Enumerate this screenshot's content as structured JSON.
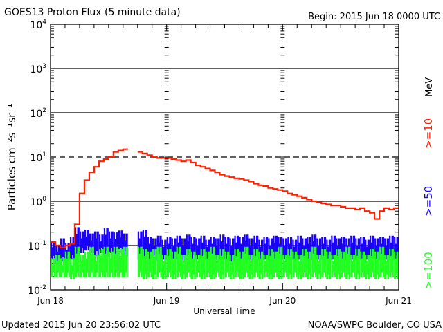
{
  "chart_data": {
    "type": "line",
    "title": "GOES13 Proton Flux (5 minute data)",
    "begin_label": "Begin: 2015 Jun 18 0000 UTC",
    "xlabel": "Universal Time",
    "ylabel": "Particles cm⁻²s⁻¹sr⁻¹",
    "yscale": "log",
    "ylim": [
      0.01,
      10000
    ],
    "y_ticks": [
      {
        "exp": "-2"
      },
      {
        "exp": "-1"
      },
      {
        "exp": "0"
      },
      {
        "exp": "1"
      },
      {
        "exp": "2"
      },
      {
        "exp": "3"
      },
      {
        "exp": "4"
      }
    ],
    "x_unit": "hours since 2015 Jun 18 0000 UTC",
    "xlim": [
      0,
      72
    ],
    "x_ticks": [
      {
        "hour": 0,
        "label": "Jun 18"
      },
      {
        "hour": 24,
        "label": "Jun 19"
      },
      {
        "hour": 48,
        "label": "Jun 20"
      },
      {
        "hour": 72,
        "label": "Jun 21"
      }
    ],
    "grid_solid": [
      3,
      2,
      0,
      -1
    ],
    "grid_dashed": [
      1
    ],
    "series": [
      {
        "name": ">=10",
        "unit_label": "MeV",
        "color": "#ff2000",
        "values": [
          0.12,
          0.1,
          0.09,
          0.1,
          0.11,
          0.3,
          1.5,
          3,
          4.5,
          6,
          8,
          9,
          10,
          13,
          14,
          15,
          null,
          null,
          13,
          12,
          11,
          10,
          9.5,
          9.5,
          9.5,
          9,
          8.5,
          8,
          8.5,
          7.5,
          6.5,
          6,
          5.5,
          5,
          4.5,
          4,
          3.7,
          3.5,
          3.3,
          3.2,
          3,
          2.8,
          2.5,
          2.3,
          2.2,
          2.0,
          1.9,
          1.8,
          1.7,
          1.5,
          1.4,
          1.3,
          1.2,
          1.1,
          1.0,
          0.95,
          0.9,
          0.85,
          0.8,
          0.8,
          0.75,
          0.7,
          0.7,
          0.65,
          0.7,
          0.6,
          0.55,
          0.4,
          0.6,
          0.7,
          0.65,
          0.7
        ]
      },
      {
        "name": ">=50",
        "color": "#1a00ff",
        "ranges": [
          [
            0.05,
            0.12
          ],
          [
            0.04,
            0.1
          ],
          [
            0.045,
            0.14
          ],
          [
            0.05,
            0.11
          ],
          [
            0.05,
            0.15
          ],
          [
            0.06,
            0.25
          ],
          [
            0.07,
            0.2
          ],
          [
            0.08,
            0.22
          ],
          [
            0.07,
            0.18
          ],
          [
            0.06,
            0.2
          ],
          [
            0.07,
            0.17
          ],
          [
            0.06,
            0.24
          ],
          [
            0.07,
            0.2
          ],
          [
            0.06,
            0.19
          ],
          [
            0.07,
            0.21
          ],
          [
            0.06,
            0.18
          ],
          null,
          null,
          [
            0.05,
            0.2
          ],
          [
            0.05,
            0.22
          ],
          [
            0.05,
            0.15
          ],
          [
            0.05,
            0.14
          ],
          [
            0.045,
            0.16
          ],
          [
            0.05,
            0.13
          ],
          [
            0.05,
            0.15
          ],
          [
            0.05,
            0.14
          ],
          [
            0.05,
            0.16
          ],
          [
            0.05,
            0.14
          ],
          [
            0.05,
            0.17
          ],
          [
            0.05,
            0.15
          ],
          [
            0.05,
            0.14
          ],
          [
            0.05,
            0.16
          ],
          [
            0.05,
            0.13
          ],
          [
            0.05,
            0.15
          ],
          [
            0.05,
            0.14
          ],
          [
            0.05,
            0.17
          ],
          [
            0.05,
            0.15
          ],
          [
            0.045,
            0.14
          ],
          [
            0.05,
            0.16
          ],
          [
            0.05,
            0.15
          ],
          [
            0.05,
            0.17
          ],
          [
            0.05,
            0.14
          ],
          [
            0.05,
            0.16
          ],
          [
            0.05,
            0.13
          ],
          [
            0.05,
            0.15
          ],
          [
            0.05,
            0.14
          ],
          [
            0.05,
            0.16
          ],
          [
            0.05,
            0.15
          ],
          [
            0.05,
            0.14
          ],
          [
            0.05,
            0.15
          ],
          [
            0.05,
            0.13
          ],
          [
            0.05,
            0.16
          ],
          [
            0.05,
            0.14
          ],
          [
            0.05,
            0.15
          ],
          [
            0.05,
            0.17
          ],
          [
            0.05,
            0.14
          ],
          [
            0.05,
            0.15
          ],
          [
            0.05,
            0.13
          ],
          [
            0.05,
            0.16
          ],
          [
            0.05,
            0.14
          ],
          [
            0.05,
            0.15
          ],
          [
            0.05,
            0.14
          ],
          [
            0.05,
            0.16
          ],
          [
            0.05,
            0.14
          ],
          [
            0.05,
            0.15
          ],
          [
            0.05,
            0.13
          ],
          [
            0.05,
            0.16
          ],
          [
            0.05,
            0.14
          ],
          [
            0.05,
            0.15
          ],
          [
            0.05,
            0.14
          ],
          [
            0.05,
            0.16
          ],
          [
            0.05,
            0.15
          ]
        ]
      },
      {
        "name": ">=100",
        "color": "#20ff20",
        "ranges": [
          [
            0.02,
            0.05
          ],
          [
            0.02,
            0.06
          ],
          [
            0.02,
            0.05
          ],
          [
            0.02,
            0.07
          ],
          [
            0.018,
            0.05
          ],
          [
            0.02,
            0.09
          ],
          [
            0.02,
            0.06
          ],
          [
            0.02,
            0.07
          ],
          [
            0.02,
            0.09
          ],
          [
            0.02,
            0.06
          ],
          [
            0.02,
            0.08
          ],
          [
            0.02,
            0.09
          ],
          [
            0.02,
            0.07
          ],
          [
            0.02,
            0.09
          ],
          [
            0.02,
            0.08
          ],
          [
            0.02,
            0.09
          ],
          null,
          null,
          [
            0.02,
            0.09
          ],
          [
            0.018,
            0.08
          ],
          [
            0.02,
            0.07
          ],
          [
            0.018,
            0.08
          ],
          [
            0.02,
            0.09
          ],
          [
            0.018,
            0.06
          ],
          [
            0.02,
            0.08
          ],
          [
            0.018,
            0.07
          ],
          [
            0.02,
            0.09
          ],
          [
            0.018,
            0.06
          ],
          [
            0.02,
            0.08
          ],
          [
            0.018,
            0.07
          ],
          [
            0.02,
            0.06
          ],
          [
            0.018,
            0.08
          ],
          [
            0.02,
            0.07
          ],
          [
            0.018,
            0.09
          ],
          [
            0.02,
            0.06
          ],
          [
            0.018,
            0.08
          ],
          [
            0.02,
            0.07
          ],
          [
            0.018,
            0.06
          ],
          [
            0.02,
            0.08
          ],
          [
            0.018,
            0.07
          ],
          [
            0.02,
            0.09
          ],
          [
            0.018,
            0.06
          ],
          [
            0.02,
            0.08
          ],
          [
            0.018,
            0.07
          ],
          [
            0.02,
            0.06
          ],
          [
            0.018,
            0.08
          ],
          [
            0.02,
            0.07
          ],
          [
            0.018,
            0.09
          ],
          [
            0.02,
            0.06
          ],
          [
            0.018,
            0.08
          ],
          [
            0.02,
            0.07
          ],
          [
            0.018,
            0.06
          ],
          [
            0.02,
            0.08
          ],
          [
            0.018,
            0.07
          ],
          [
            0.02,
            0.09
          ],
          [
            0.018,
            0.06
          ],
          [
            0.02,
            0.08
          ],
          [
            0.018,
            0.07
          ],
          [
            0.02,
            0.06
          ],
          [
            0.018,
            0.08
          ],
          [
            0.02,
            0.07
          ],
          [
            0.018,
            0.09
          ],
          [
            0.02,
            0.06
          ],
          [
            0.018,
            0.08
          ],
          [
            0.02,
            0.07
          ],
          [
            0.018,
            0.06
          ],
          [
            0.02,
            0.08
          ],
          [
            0.018,
            0.07
          ],
          [
            0.02,
            0.09
          ],
          [
            0.018,
            0.06
          ],
          [
            0.02,
            0.08
          ],
          [
            0.018,
            0.07
          ]
        ]
      }
    ]
  },
  "footer": {
    "updated": "Updated 2015 Jun 20 23:56:02 UTC",
    "credit": "NOAA/SWPC Boulder, CO USA"
  }
}
